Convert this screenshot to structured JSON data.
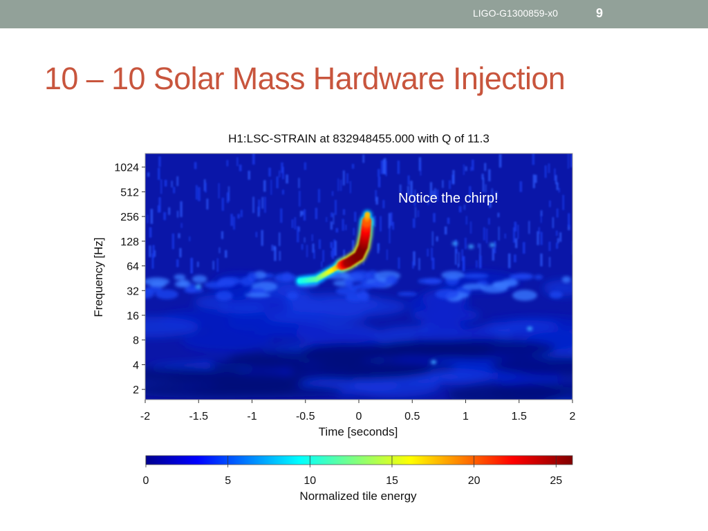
{
  "slide": {
    "doc_id": "LIGO-G1300859-x0",
    "page_number": "9",
    "title": "10 – 10 Solar Mass Hardware Injection"
  },
  "colors": {
    "topbar": "#92a199",
    "title": "#c8553d",
    "annotation": "#ffffff",
    "plot_background": "#0a16a8"
  },
  "chart_data": {
    "type": "heatmap",
    "title": "H1:LSC-STRAIN at 832948455.000 with Q of 11.3",
    "xlabel": "Time [seconds]",
    "ylabel": "Frequency [Hz]",
    "xlim": [
      -2,
      2
    ],
    "x_ticks": [
      -2,
      -1.5,
      -1,
      -0.5,
      0,
      0.5,
      1,
      1.5,
      2
    ],
    "y_scale": "log2",
    "ylim": [
      1.5,
      1500
    ],
    "y_ticks": [
      2,
      4,
      8,
      16,
      32,
      64,
      128,
      256,
      512,
      1024
    ],
    "annotation": "Notice the chirp!",
    "colorbar": {
      "label": "Normalized tile energy",
      "range": [
        0,
        26
      ],
      "ticks": [
        0,
        5,
        10,
        15,
        20,
        25
      ],
      "colormap": "jet"
    },
    "chirp_track": [
      {
        "t": -0.55,
        "f": 42,
        "energy": 10
      },
      {
        "t": -0.4,
        "f": 44,
        "energy": 12
      },
      {
        "t": -0.2,
        "f": 62,
        "energy": 18
      },
      {
        "t": -0.1,
        "f": 70,
        "energy": 25
      },
      {
        "t": 0.0,
        "f": 85,
        "energy": 26
      },
      {
        "t": 0.04,
        "f": 110,
        "energy": 26
      },
      {
        "t": 0.06,
        "f": 150,
        "energy": 24
      },
      {
        "t": 0.07,
        "f": 200,
        "energy": 22
      },
      {
        "t": 0.08,
        "f": 270,
        "energy": 18
      }
    ]
  }
}
